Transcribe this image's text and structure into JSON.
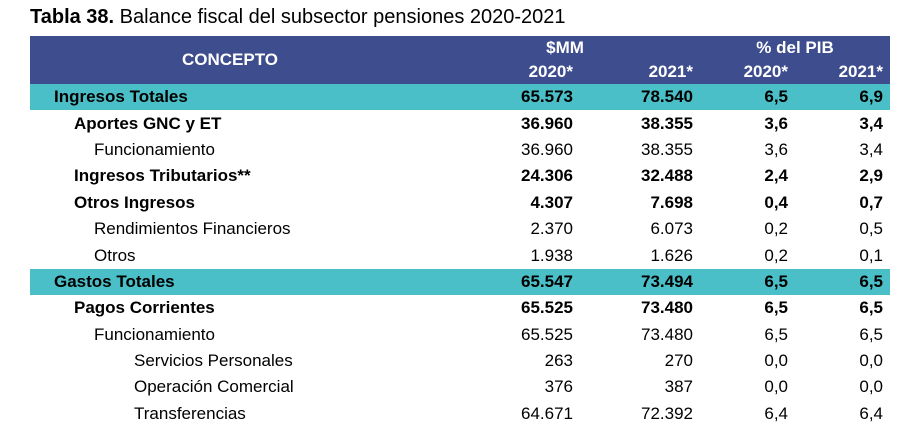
{
  "title": {
    "number": "Tabla 38.",
    "text": " Balance fiscal del subsector pensiones 2020-2021"
  },
  "header": {
    "concept": "CONCEPTO",
    "group_mm": "$MM",
    "group_pib": "% del PIB",
    "years": [
      "2020*",
      "2021*",
      "2020*",
      "2021*"
    ]
  },
  "rows": [
    {
      "label": "Ingresos Totales",
      "level": 0,
      "values": [
        "65.573",
        "78.540",
        "6,5",
        "6,9"
      ]
    },
    {
      "label": "Aportes GNC y ET",
      "level": 1,
      "values": [
        "36.960",
        "38.355",
        "3,6",
        "3,4"
      ]
    },
    {
      "label": "Funcionamiento",
      "level": 2,
      "values": [
        "36.960",
        "38.355",
        "3,6",
        "3,4"
      ]
    },
    {
      "label": "Ingresos Tributarios**",
      "level": 1,
      "values": [
        "24.306",
        "32.488",
        "2,4",
        "2,9"
      ]
    },
    {
      "label": "Otros Ingresos",
      "level": 1,
      "values": [
        "4.307",
        "7.698",
        "0,4",
        "0,7"
      ]
    },
    {
      "label": "Rendimientos Financieros",
      "level": 2,
      "values": [
        "2.370",
        "6.073",
        "0,2",
        "0,5"
      ]
    },
    {
      "label": "Otros",
      "level": 2,
      "values": [
        "1.938",
        "1.626",
        "0,2",
        "0,1"
      ]
    },
    {
      "label": "Gastos Totales",
      "level": 0,
      "values": [
        "65.547",
        "73.494",
        "6,5",
        "6,5"
      ]
    },
    {
      "label": "Pagos Corrientes",
      "level": 1,
      "values": [
        "65.525",
        "73.480",
        "6,5",
        "6,5"
      ]
    },
    {
      "label": "Funcionamiento",
      "level": 2,
      "values": [
        "65.525",
        "73.480",
        "6,5",
        "6,5"
      ]
    },
    {
      "label": "Servicios Personales",
      "level": 3,
      "values": [
        "263",
        "270",
        "0,0",
        "0,0"
      ]
    },
    {
      "label": "Operación Comercial",
      "level": 3,
      "values": [
        "376",
        "387",
        "0,0",
        "0,0"
      ]
    },
    {
      "label": "Transferencias",
      "level": 3,
      "values": [
        "64.671",
        "72.392",
        "6,4",
        "6,4"
      ]
    }
  ],
  "colors": {
    "header_bg": "#3e4d8d",
    "total_row_bg": "#4bbfc8"
  }
}
